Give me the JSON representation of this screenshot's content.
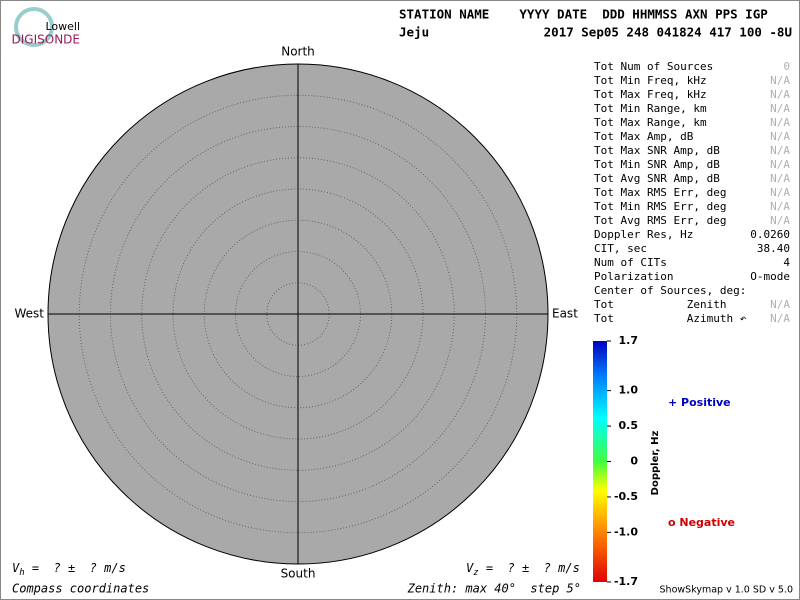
{
  "chart_data": {
    "type": "skymap",
    "logo": {
      "top": "Lowell",
      "bottom": "DIGISONDE"
    },
    "header": {
      "labels": "STATION NAME    YYYY DATE  DDD HHMMSS AXN PPS IGP",
      "station": "Jeju",
      "values": "2017 Sep05 248 041824 417 100 -8U"
    },
    "directions": {
      "north": "North",
      "south": "South",
      "east": "East",
      "west": "West"
    },
    "rlim": [
      0,
      40
    ],
    "rticks": [
      5,
      10,
      15,
      20,
      25,
      30,
      35
    ],
    "stats": [
      [
        "Tot Num of Sources",
        "0"
      ],
      [
        "Tot Min Freq, kHz",
        "N/A"
      ],
      [
        "Tot Max Freq, kHz",
        "N/A"
      ],
      [
        "Tot Min Range, km",
        "N/A"
      ],
      [
        "Tot Max Range, km",
        "N/A"
      ],
      [
        "Tot Max Amp, dB",
        "N/A"
      ],
      [
        "Tot Max SNR Amp, dB",
        "N/A"
      ],
      [
        "Tot Min SNR Amp, dB",
        "N/A"
      ],
      [
        "Tot Avg SNR Amp, dB",
        "N/A"
      ],
      [
        "Tot Max RMS Err, deg",
        "N/A"
      ],
      [
        "Tot Min RMS Err, deg",
        "N/A"
      ],
      [
        "Tot Avg RMS Err, deg",
        "N/A"
      ],
      [
        "Doppler Res, Hz",
        "0.0260"
      ],
      [
        "CIT, sec",
        "38.40"
      ],
      [
        "Num of CITs",
        "4"
      ],
      [
        "Polarization",
        "O-mode"
      ],
      [
        "Center of Sources, deg:"
      ],
      [
        "Tot           Zenith",
        "N/A"
      ],
      [
        "Tot           Azimuth ↶",
        "N/A"
      ]
    ],
    "colorbar": {
      "label": "Doppler, Hz",
      "clim": [
        -1.7,
        1.7
      ],
      "ticks": [
        1.7,
        {
          "value": 1.0,
          "label": "1.0"
        },
        0.5,
        0,
        -0.5,
        {
          "value": -1.0,
          "label": "-1.0"
        },
        -1.7
      ]
    },
    "legend": {
      "positive": "+ Positive",
      "negative": "o Negative"
    },
    "footer": {
      "vh_symbol": "V",
      "vh_sub": "h",
      "vh_text": " =  ? ±  ? m/s",
      "vz_symbol": "V",
      "vz_sub": "z",
      "vz_text": " =  ? ±  ? m/s",
      "coords": "Compass coordinates",
      "zenith": "Zenith: max 40°  step 5°",
      "version": "ShowSkymap v 1.0  SD v 5.0"
    }
  }
}
